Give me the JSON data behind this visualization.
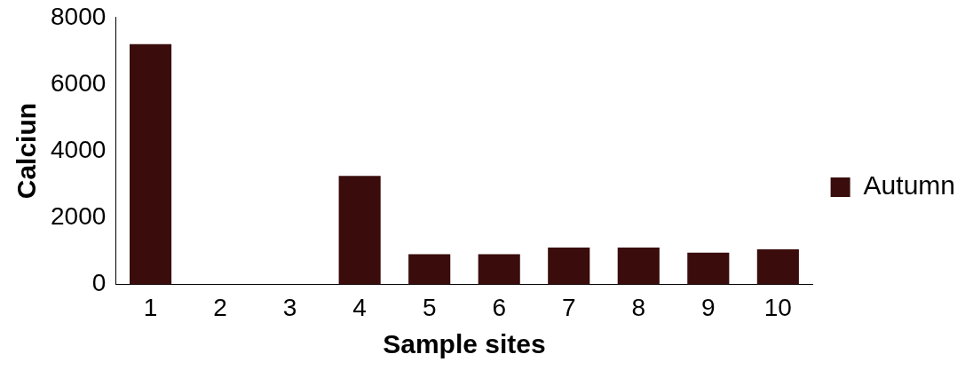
{
  "chart_data": {
    "type": "bar",
    "xlabel": "Sample sites",
    "ylabel": "Calciun",
    "categories": [
      "1",
      "2",
      "3",
      "4",
      "5",
      "6",
      "7",
      "8",
      "9",
      "10"
    ],
    "series": [
      {
        "name": "Autumn",
        "color": "#3a0c0c",
        "values": [
          7200,
          0,
          0,
          3250,
          900,
          900,
          1100,
          1100,
          950,
          1050
        ]
      }
    ],
    "ylim": [
      0,
      8000
    ],
    "yticks": [
      0,
      2000,
      4000,
      6000,
      8000
    ],
    "grid": false,
    "legend": "right"
  }
}
